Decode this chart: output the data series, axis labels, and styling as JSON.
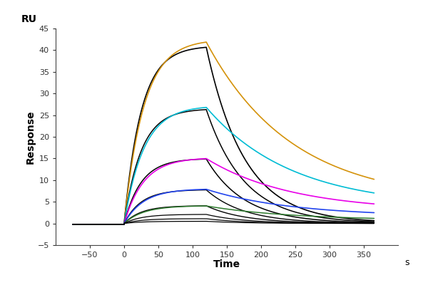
{
  "ru_label": "RU",
  "xlabel": "Time",
  "xlabel_suffix": "s",
  "ylabel": "Response",
  "xlim": [
    -100,
    400
  ],
  "ylim": [
    -5,
    45
  ],
  "xticks": [
    -50,
    0,
    50,
    100,
    150,
    200,
    250,
    300,
    350
  ],
  "yticks": [
    -5,
    0,
    5,
    10,
    15,
    20,
    25,
    30,
    35,
    40,
    45
  ],
  "assoc_start": 0,
  "assoc_end": 120,
  "dissoc_end": 365,
  "baseline_start": -75,
  "curve_params": [
    {
      "peak": 41.0,
      "color": "#000000",
      "ka": 0.04,
      "kd": 0.018,
      "dissoc_end_val": 0.15,
      "lw": 1.2
    },
    {
      "peak": 42.5,
      "color": "#d4920a",
      "ka": 0.035,
      "kd": 0.008,
      "dissoc_end_val": 5.0,
      "lw": 1.2
    },
    {
      "peak": 26.5,
      "color": "#000000",
      "ka": 0.04,
      "kd": 0.018,
      "dissoc_end_val": 0.1,
      "lw": 1.1
    },
    {
      "peak": 27.2,
      "color": "#00bcd4",
      "ka": 0.035,
      "kd": 0.008,
      "dissoc_end_val": 3.8,
      "lw": 1.2
    },
    {
      "peak": 15.0,
      "color": "#000000",
      "ka": 0.04,
      "kd": 0.018,
      "dissoc_end_val": 0.05,
      "lw": 1.1
    },
    {
      "peak": 15.2,
      "color": "#e800e8",
      "ka": 0.035,
      "kd": 0.008,
      "dissoc_end_val": 2.8,
      "lw": 1.2
    },
    {
      "peak": 7.8,
      "color": "#000000",
      "ka": 0.04,
      "kd": 0.018,
      "dissoc_end_val": 0.02,
      "lw": 1.0
    },
    {
      "peak": 8.0,
      "color": "#2244ee",
      "ka": 0.035,
      "kd": 0.008,
      "dissoc_end_val": 1.6,
      "lw": 1.2
    },
    {
      "peak": 4.1,
      "color": "#000000",
      "ka": 0.04,
      "kd": 0.018,
      "dissoc_end_val": 0.01,
      "lw": 1.0
    },
    {
      "peak": 4.1,
      "color": "#2d7a2d",
      "ka": 0.035,
      "kd": 0.008,
      "dissoc_end_val": 0.7,
      "lw": 1.1
    },
    {
      "peak": 2.1,
      "color": "#000000",
      "ka": 0.04,
      "kd": 0.018,
      "dissoc_end_val": 0.0,
      "lw": 0.9
    },
    {
      "peak": 1.1,
      "color": "#000000",
      "ka": 0.04,
      "kd": 0.018,
      "dissoc_end_val": 0.0,
      "lw": 0.9
    },
    {
      "peak": 0.5,
      "color": "#000000",
      "ka": 0.04,
      "kd": 0.018,
      "dissoc_end_val": 0.0,
      "lw": 0.9
    }
  ]
}
